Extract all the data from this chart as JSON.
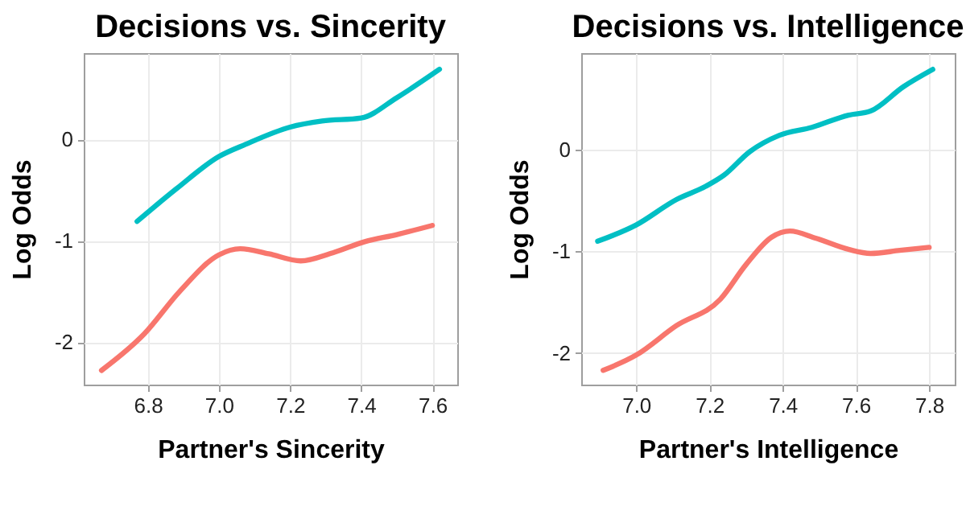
{
  "chart_data": [
    {
      "type": "line",
      "title": "Decisions vs. Sincerity",
      "xlabel": "Partner's Sincerity",
      "ylabel": "Log Odds",
      "xlim": [
        6.62,
        7.67
      ],
      "ylim": [
        -2.42,
        0.85
      ],
      "xticks": [
        6.8,
        {
          "value": 7,
          "label": "7.0"
        },
        7.2,
        7.4,
        7.6
      ],
      "yticks": [
        -2,
        -1,
        0
      ],
      "grid": true,
      "series": [
        {
          "color": "#00bfc4",
          "x": [
            6.77,
            6.88,
            7.0,
            7.075,
            7.2,
            7.29,
            7.4,
            7.5,
            7.62
          ],
          "values": [
            -0.81,
            -0.49,
            -0.17,
            -0.05,
            0.12,
            0.18,
            0.21,
            0.41,
            0.69
          ]
        },
        {
          "color": "#f8766d",
          "x": [
            6.67,
            6.79,
            6.89,
            7.0,
            7.06,
            7.14,
            7.23,
            7.32,
            7.41,
            7.5,
            7.6
          ],
          "values": [
            -2.28,
            -1.92,
            -1.5,
            -1.14,
            -1.08,
            -1.13,
            -1.2,
            -1.12,
            -1.01,
            -0.94,
            -0.85
          ]
        }
      ]
    },
    {
      "type": "line",
      "title": "Decisions vs. Intelligence",
      "xlabel": "Partner's Intelligence",
      "ylabel": "Log Odds",
      "xlim": [
        6.85,
        7.87
      ],
      "ylim": [
        -2.31,
        0.95
      ],
      "xticks": [
        {
          "value": 7,
          "label": "7.0"
        },
        7.2,
        7.4,
        7.6,
        7.8
      ],
      "yticks": [
        -2,
        -1,
        0
      ],
      "grid": true,
      "series": [
        {
          "color": "#00bfc4",
          "x": [
            6.895,
            7.0,
            7.11,
            7.19,
            7.24,
            7.31,
            7.39,
            7.48,
            7.58,
            7.64,
            7.73,
            7.81
          ],
          "values": [
            -0.9,
            -0.74,
            -0.49,
            -0.36,
            -0.25,
            -0.02,
            0.14,
            0.22,
            0.34,
            0.38,
            0.62,
            0.79
          ]
        },
        {
          "color": "#f8766d",
          "x": [
            6.91,
            7.0,
            7.11,
            7.23,
            7.3,
            7.37,
            7.42,
            7.49,
            7.58,
            7.64,
            7.72,
            7.8
          ],
          "values": [
            -2.17,
            -2.02,
            -1.73,
            -1.47,
            -1.13,
            -0.86,
            -0.8,
            -0.87,
            -0.98,
            -1.02,
            -0.99,
            -0.96
          ]
        }
      ]
    }
  ]
}
